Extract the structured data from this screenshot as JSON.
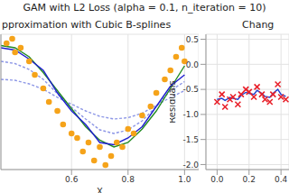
{
  "title": "GAM with L2 Loss (alpha = 0.1, n_iteration = 10)",
  "chart_data": [
    {
      "type": "line",
      "title": "pproximation with Cubic B-splines",
      "x_label": "X",
      "xlim": [
        0.35,
        1.05
      ],
      "xticks": [
        0.6,
        0.8,
        1.0
      ],
      "ylim": [
        -1.5,
        1.5
      ],
      "grid": true,
      "tick_labels": "x",
      "series": [
        {
          "type": "line",
          "color": "#8c96e6",
          "line_style": "dashed",
          "x": [
            0.35,
            0.4,
            0.45,
            0.5,
            0.55,
            0.6,
            0.65,
            0.7,
            0.75,
            0.8,
            0.85,
            0.9,
            0.95,
            1.0
          ],
          "values": [
            0.5,
            0.48,
            0.4,
            0.28,
            0.1,
            -0.05,
            -0.2,
            -0.32,
            -0.38,
            -0.35,
            -0.25,
            -0.08,
            0.1,
            0.25
          ]
        },
        {
          "type": "line",
          "color": "#8c96e6",
          "line_style": "dashed",
          "x": [
            0.35,
            0.4,
            0.45,
            0.5,
            0.55,
            0.6,
            0.65,
            0.7,
            0.75,
            0.8,
            0.85,
            0.9,
            0.95,
            1.0
          ],
          "values": [
            0.9,
            0.85,
            0.72,
            0.5,
            0.18,
            -0.12,
            -0.38,
            -0.62,
            -0.7,
            -0.62,
            -0.42,
            -0.1,
            0.25,
            0.45
          ]
        },
        {
          "type": "scatter",
          "color": "#f5a31a",
          "marker": "o",
          "x": [
            0.37,
            0.39,
            0.4,
            0.42,
            0.45,
            0.47,
            0.5,
            0.52,
            0.55,
            0.57,
            0.6,
            0.62,
            0.64,
            0.66,
            0.68,
            0.7,
            0.72,
            0.74,
            0.76,
            0.78,
            0.8,
            0.82,
            0.85,
            0.88,
            0.9,
            0.93,
            0.95,
            0.97,
            0.99,
            1.0
          ],
          "values": [
            1.3,
            1.4,
            1.1,
            1.2,
            0.9,
            0.6,
            0.3,
            0.0,
            -0.2,
            -0.5,
            -0.7,
            -0.8,
            -1.1,
            -0.9,
            -1.3,
            -1.0,
            -1.4,
            -1.2,
            -0.9,
            -1.0,
            -0.6,
            -0.7,
            -0.3,
            -0.1,
            0.2,
            0.5,
            0.7,
            1.0,
            1.2,
            0.9
          ]
        },
        {
          "type": "line",
          "color": "#228b22",
          "x": [
            0.35,
            0.4,
            0.45,
            0.5,
            0.55,
            0.6,
            0.65,
            0.7,
            0.75,
            0.8,
            0.85,
            0.9,
            0.95,
            1.0
          ],
          "values": [
            1.25,
            1.2,
            1.0,
            0.65,
            0.25,
            -0.15,
            -0.55,
            -0.85,
            -1.0,
            -0.9,
            -0.6,
            -0.2,
            0.3,
            0.8
          ]
        },
        {
          "type": "line",
          "color": "#1f1fd0",
          "x": [
            0.35,
            0.4,
            0.45,
            0.5,
            0.55,
            0.6,
            0.65,
            0.7,
            0.75,
            0.8,
            0.85,
            0.9,
            0.95,
            1.0
          ],
          "values": [
            1.2,
            1.15,
            0.95,
            0.7,
            0.2,
            -0.2,
            -0.5,
            -0.9,
            -0.95,
            -0.8,
            -0.55,
            -0.1,
            0.35,
            0.6
          ]
        }
      ]
    },
    {
      "type": "line",
      "title": "Chang",
      "y_label": "Residuals",
      "xlim": [
        -0.07,
        0.45
      ],
      "xticks": [
        0.0,
        0.2,
        0.4
      ],
      "ylim": [
        -2.1,
        0.6
      ],
      "yticks": [
        -2.0,
        -1.5,
        -1.0,
        -0.5,
        0.0,
        0.5
      ],
      "grid": true,
      "series": [
        {
          "type": "scatter",
          "color": "#e8202a",
          "marker": "x",
          "x": [
            0.0,
            0.03,
            0.05,
            0.08,
            0.1,
            0.13,
            0.15,
            0.18,
            0.2,
            0.23,
            0.25,
            0.28,
            0.3,
            0.33,
            0.35,
            0.38,
            0.4,
            0.43
          ],
          "values": [
            -0.75,
            -0.6,
            -0.85,
            -0.7,
            -0.65,
            -0.8,
            -0.6,
            -0.5,
            -0.55,
            -0.65,
            -0.45,
            -0.6,
            -0.7,
            -0.75,
            -0.6,
            -0.4,
            -0.65,
            -0.7
          ]
        },
        {
          "type": "line",
          "color": "#1f3fd0",
          "x": [
            0.0,
            0.03,
            0.05,
            0.08,
            0.1,
            0.13,
            0.15,
            0.18,
            0.2,
            0.23,
            0.25,
            0.28,
            0.3,
            0.33,
            0.35,
            0.38,
            0.4,
            0.43
          ],
          "values": [
            -0.7,
            -0.68,
            -0.72,
            -0.66,
            -0.68,
            -0.7,
            -0.62,
            -0.56,
            -0.58,
            -0.6,
            -0.52,
            -0.58,
            -0.64,
            -0.66,
            -0.58,
            -0.5,
            -0.6,
            -0.64
          ]
        }
      ]
    }
  ]
}
